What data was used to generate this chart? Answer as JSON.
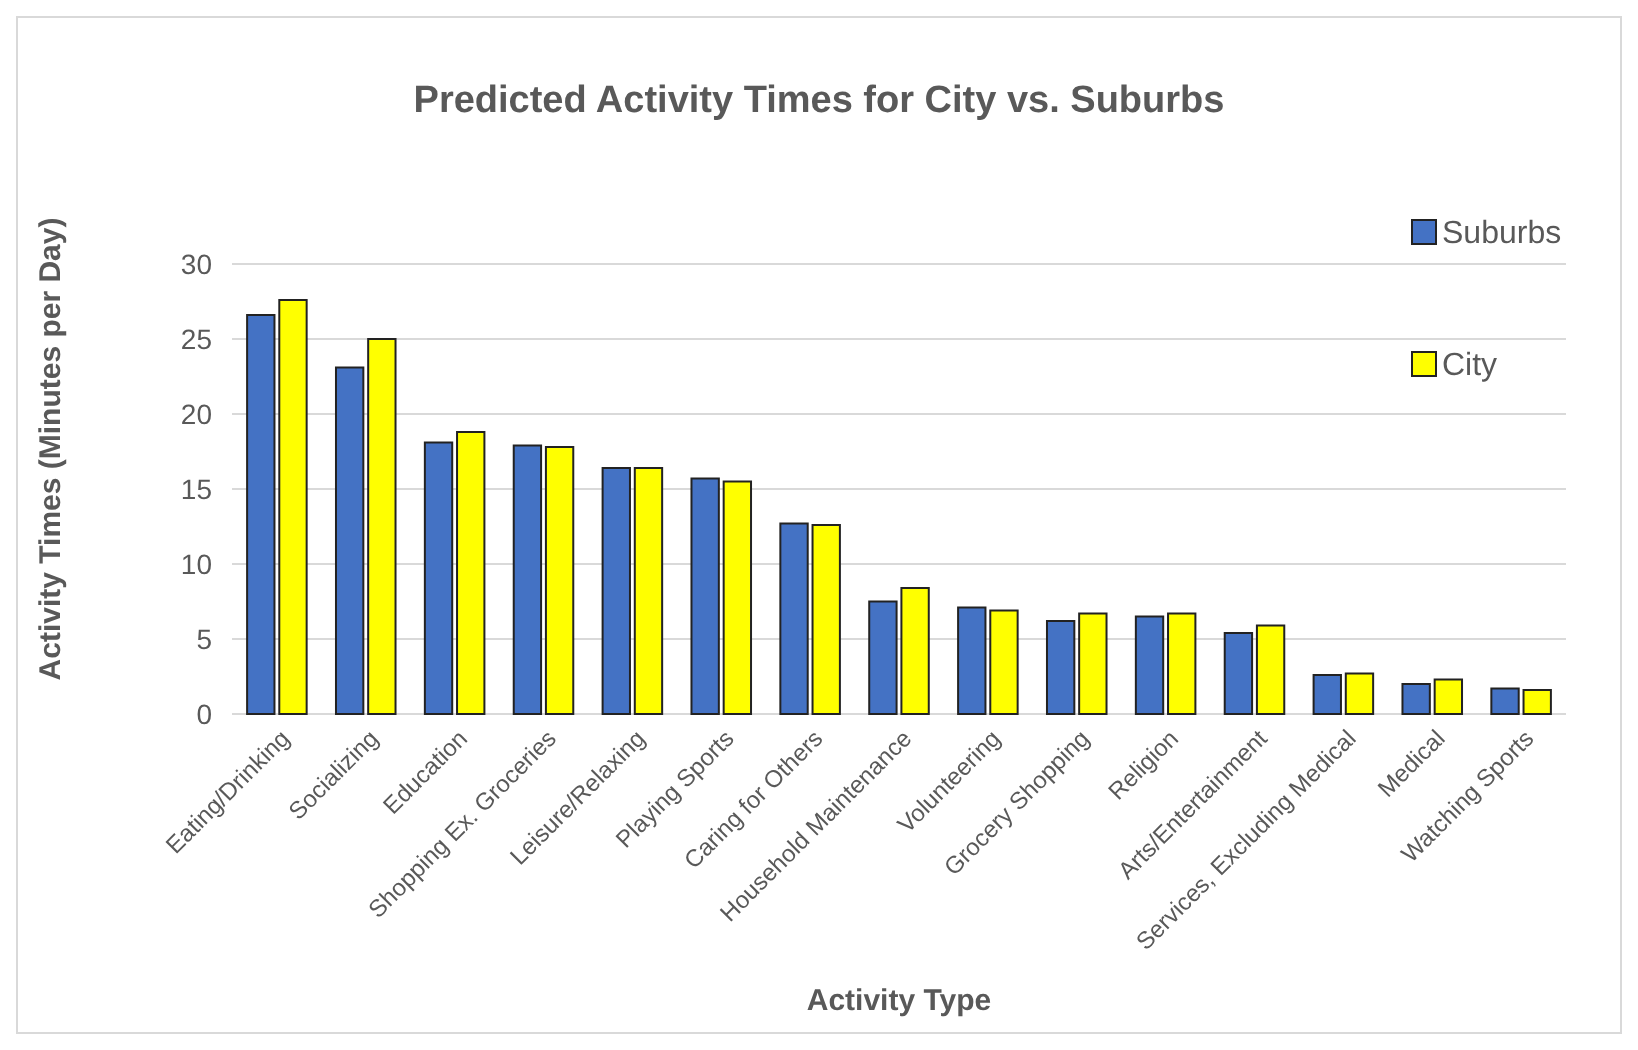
{
  "chart_data": {
    "type": "bar",
    "title": "Predicted Activity Times for City vs. Suburbs",
    "xlabel": "Activity Type",
    "ylabel": "Activity Times (Minutes per Day)",
    "categories": [
      "Eating/Drinking",
      "Socializing",
      "Education",
      "Shopping Ex. Groceries",
      "Leisure/Relaxing",
      "Playing Sports",
      "Caring for Others",
      "Household Maintenance",
      "Volunteering",
      "Grocery Shopping",
      "Religion",
      "Arts/Entertainment",
      "Services, Excluding Medical",
      "Medical",
      "Watching Sports"
    ],
    "series": [
      {
        "name": "Suburbs",
        "color": "#4472c4",
        "values": [
          26.6,
          23.1,
          18.1,
          17.9,
          16.4,
          15.7,
          12.7,
          7.5,
          7.1,
          6.2,
          6.5,
          5.4,
          2.6,
          2.0,
          1.7
        ]
      },
      {
        "name": "City",
        "color": "#ffff00",
        "values": [
          27.6,
          25.0,
          18.8,
          17.8,
          16.4,
          15.5,
          12.6,
          8.4,
          6.9,
          6.7,
          6.7,
          5.9,
          2.7,
          2.3,
          1.6
        ]
      }
    ],
    "ylim": [
      0,
      30
    ],
    "yticks": [
      0,
      5,
      10,
      15,
      20,
      25,
      30
    ],
    "grid": "y",
    "legend": "top right"
  }
}
